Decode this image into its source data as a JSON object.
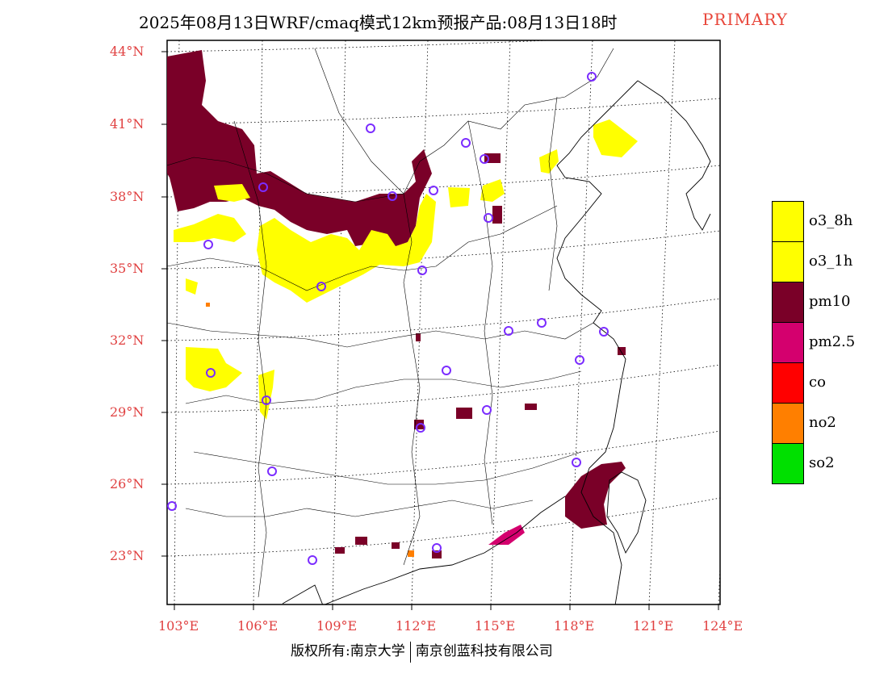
{
  "title": {
    "main": "2025年08月13日WRF/cmaq模式12km预报产品:08月13日18时",
    "mode": "PRIMARY"
  },
  "axes": {
    "lat_labels": [
      "44°N",
      "41°N",
      "38°N",
      "35°N",
      "32°N",
      "29°N",
      "26°N",
      "23°N"
    ],
    "lon_labels": [
      "103°E",
      "106°E",
      "109°E",
      "112°E",
      "115°E",
      "118°E",
      "121°E",
      "124°E"
    ]
  },
  "legend": {
    "items": [
      {
        "label": "o3_8h",
        "color": "#ffff00"
      },
      {
        "label": "o3_1h",
        "color": "#ffff00"
      },
      {
        "label": "pm10",
        "color": "#7a0028"
      },
      {
        "label": "pm2.5",
        "color": "#d4006e"
      },
      {
        "label": "co",
        "color": "#ff0000"
      },
      {
        "label": "no2",
        "color": "#ff7f00"
      },
      {
        "label": "so2",
        "color": "#00e000"
      }
    ]
  },
  "footer": {
    "left": "版权所有:南京大学",
    "right": "南京创蓝科技有限公司"
  },
  "colors": {
    "axis_label": "#e04040",
    "station_marker": "#7b2cff"
  }
}
